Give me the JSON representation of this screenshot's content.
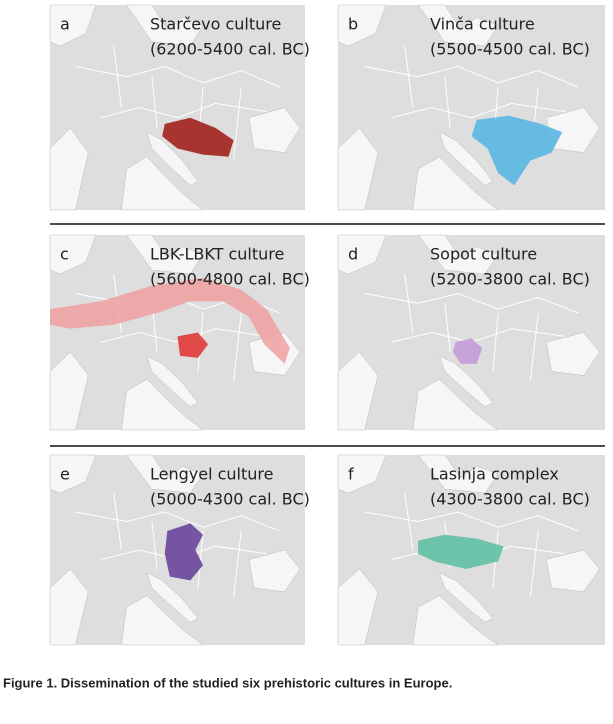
{
  "panels": [
    {
      "letter": "a",
      "title": "Starčevo culture",
      "dates": "(6200-5400 cal. BC)"
    },
    {
      "letter": "b",
      "title": "Vinča culture",
      "dates": "(5500-4500 cal. BC)"
    },
    {
      "letter": "c",
      "title": "LBK-LBKT culture",
      "dates": "(5600-4800 cal. BC)"
    },
    {
      "letter": "d",
      "title": "Sopot culture",
      "dates": "(5200-3800 cal. BC)"
    },
    {
      "letter": "e",
      "title": "Lengyel culture",
      "dates": "(5000-4300 cal. BC)"
    },
    {
      "letter": "f",
      "title": "Lasinja complex",
      "dates": "(4300-3800 cal. BC)"
    }
  ],
  "caption": "Figure 1. Dissemination of the studied six prehistoric cultures in Europe."
}
